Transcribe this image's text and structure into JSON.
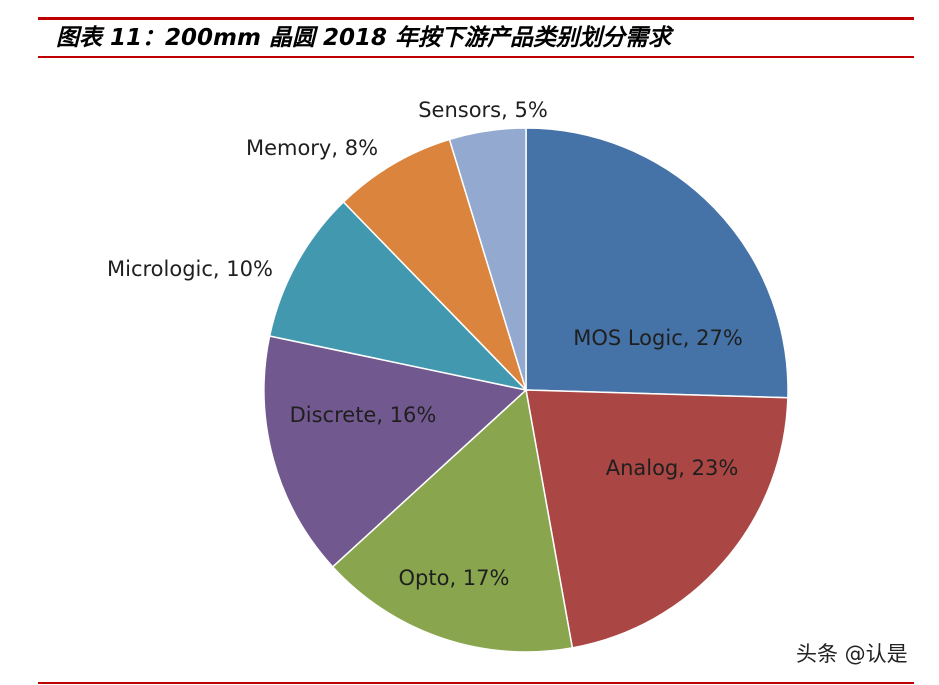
{
  "figure": {
    "title": "图表 11：200mm 晶圆 2018 年按下游产品类别划分需求"
  },
  "chart_data": {
    "type": "pie",
    "title": "",
    "slices": [
      {
        "label": "MOS Logic, 27%",
        "name": "MOS Logic",
        "value": 27,
        "color": "#4572a7"
      },
      {
        "label": "Analog, 23%",
        "name": "Analog",
        "value": 23,
        "color": "#aa4643"
      },
      {
        "label": "Opto, 17%",
        "name": "Opto",
        "value": 17,
        "color": "#89a54e"
      },
      {
        "label": "Discrete, 16%",
        "name": "Discrete",
        "value": 16,
        "color": "#71588f"
      },
      {
        "label": "Micrologic, 10%",
        "name": "Micrologic",
        "value": 10,
        "color": "#4198af"
      },
      {
        "label": "Memory,  8%",
        "name": "Memory",
        "value": 8,
        "color": "#db843d"
      },
      {
        "label": "Sensors, 5%",
        "name": "Sensors",
        "value": 5,
        "color": "#93a9cf"
      }
    ],
    "legend": "none",
    "start_angle_deg": 0,
    "direction": "clockwise"
  },
  "watermark": {
    "text": "头条 @认是"
  }
}
